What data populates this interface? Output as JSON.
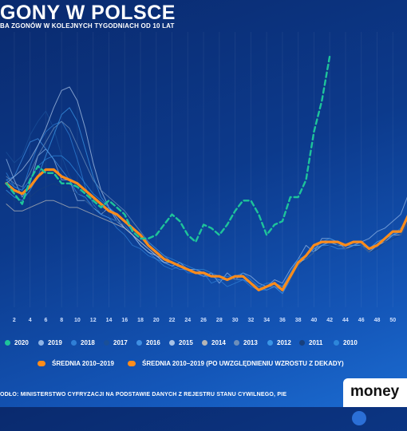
{
  "header": {
    "title": "GONY W POLSCE",
    "subtitle": "BA ZGONÓW W KOLEJNYCH TYGODNIACH OD 10 LAT"
  },
  "footer": {
    "source": "ODŁO: MINISTERSTWO CYFRYZACJI NA PODSTAWIE DANYCH Z REJESTRU STANU CYWILNEGO, PIE",
    "logo": "money"
  },
  "colors": {
    "y2020": "#1ec49a",
    "avg": "#ff8c1a",
    "thin": "#9fbde6"
  },
  "legend": {
    "years": [
      {
        "label": "2020",
        "color": "#1ec49a"
      },
      {
        "label": "2019",
        "color": "#8fb4e6"
      },
      {
        "label": "2018",
        "color": "#2f7fd6"
      },
      {
        "label": "2017",
        "color": "#1a4f98"
      },
      {
        "label": "2016",
        "color": "#3f8fe3"
      },
      {
        "label": "2015",
        "color": "#a7c2e6"
      },
      {
        "label": "2014",
        "color": "#b5b5b5"
      },
      {
        "label": "2013",
        "color": "#6d8fba"
      },
      {
        "label": "2012",
        "color": "#3a95e6"
      },
      {
        "label": "2011",
        "color": "#173f7d"
      },
      {
        "label": "2010",
        "color": "#2d86da"
      }
    ],
    "average_label": "ŚREDNIA 2010–2019",
    "adjusted_label": "ŚREDNIA 2010–2019 (PO UWZGLĘDNIENIU WZROSTU Z DEKADY)"
  },
  "chart_data": {
    "type": "line",
    "title": "GONY W POLSCE",
    "x": [
      1,
      2,
      3,
      4,
      5,
      6,
      7,
      8,
      9,
      10,
      11,
      12,
      13,
      14,
      15,
      16,
      17,
      18,
      19,
      20,
      21,
      22,
      23,
      24,
      25,
      26,
      27,
      28,
      29,
      30,
      31,
      32,
      33,
      34,
      35,
      36,
      37,
      38,
      39,
      40,
      41,
      42,
      43,
      44,
      45,
      46,
      47,
      48,
      49,
      50,
      51,
      52
    ],
    "x_tick_labels": [
      "2",
      "4",
      "6",
      "8",
      "10",
      "12",
      "14",
      "16",
      "18",
      "20",
      "22",
      "24",
      "26",
      "28",
      "30",
      "32",
      "34",
      "36",
      "38",
      "40",
      "42",
      "44",
      "46",
      "48",
      "50"
    ],
    "ylim": [
      6000,
      14000
    ],
    "series": [
      {
        "name": "2020",
        "style": "dashed",
        "values": [
          9600,
          9300,
          9000,
          9700,
          10100,
          9900,
          9900,
          9600,
          9600,
          9500,
          9300,
          9100,
          8900,
          9100,
          8900,
          8700,
          8200,
          8000,
          8000,
          8100,
          8400,
          8700,
          8500,
          8100,
          7900,
          8400,
          8300,
          8100,
          8400,
          8800,
          9100,
          9100,
          8700,
          8100,
          8400,
          8500,
          9200,
          9200,
          9700,
          11100,
          12000,
          13300,
          null,
          null,
          null,
          null,
          null,
          null,
          null,
          null,
          null,
          null
        ]
      },
      {
        "name": "ŚREDNIA 2010–2019",
        "style": "thick",
        "values": [
          9600,
          9400,
          9300,
          9500,
          9800,
          10000,
          10000,
          9800,
          9700,
          9600,
          9400,
          9200,
          9000,
          8800,
          8700,
          8500,
          8300,
          8100,
          7800,
          7600,
          7400,
          7300,
          7200,
          7100,
          7000,
          7000,
          6900,
          6900,
          6800,
          6900,
          6900,
          6700,
          6500,
          6600,
          6700,
          6500,
          6900,
          7300,
          7500,
          7800,
          7900,
          7900,
          7900,
          7800,
          7900,
          7900,
          7700,
          7800,
          8000,
          8200,
          8200,
          8700
        ]
      },
      {
        "name": "2019",
        "style": "thin",
        "values": [
          10300,
          9700,
          9200,
          9600,
          10400,
          10600,
          10300,
          9700,
          9700,
          9100,
          9100,
          8900,
          8700,
          8900,
          8500,
          8300,
          8100,
          7900,
          7700,
          7500,
          7300,
          7200,
          7300,
          7100,
          7000,
          6900,
          7000,
          6700,
          7000,
          6800,
          7000,
          6900,
          6700,
          6600,
          6800,
          6700,
          7100,
          7400,
          7800,
          7600,
          8000,
          8000,
          7900,
          7700,
          7800,
          7900,
          8000,
          8200,
          8300,
          8500,
          8700,
          9300
        ]
      },
      {
        "name": "2018",
        "style": "thin",
        "values": [
          9900,
          9500,
          9400,
          10100,
          10700,
          11100,
          11300,
          11400,
          11000,
          10300,
          9500,
          9000,
          8700,
          8600,
          8300,
          8100,
          7800,
          7700,
          7500,
          7400,
          7200,
          7100,
          7200,
          7000,
          7000,
          7000,
          6700,
          6800,
          6600,
          6700,
          6800,
          6600,
          6500,
          6500,
          6600,
          6400,
          6900,
          7300,
          7500,
          7700,
          7800,
          7900,
          7800,
          7700,
          7800,
          7800,
          7600,
          7800,
          8000,
          8100,
          8300,
          8600
        ]
      },
      {
        "name": "2017",
        "style": "thin",
        "values": [
          10500,
          10200,
          10400,
          11000,
          11400,
          11700,
          11200,
          10400,
          9800,
          9500,
          9100,
          9000,
          8900,
          8800,
          8700,
          8500,
          8300,
          8000,
          7700,
          7600,
          7500,
          7300,
          7200,
          7200,
          7000,
          7100,
          6900,
          6900,
          6700,
          6900,
          6900,
          6700,
          6500,
          6600,
          6600,
          6500,
          6800,
          7300,
          7400,
          7600,
          7700,
          7900,
          7800,
          7700,
          7700,
          7800,
          7600,
          7700,
          7800,
          8000,
          8100,
          8500
        ]
      },
      {
        "name": "2016",
        "style": "thin",
        "values": [
          9700,
          9800,
          10300,
          10800,
          10900,
          10600,
          10300,
          10000,
          9700,
          9300,
          9200,
          8900,
          8700,
          8600,
          8500,
          8400,
          8100,
          7800,
          7600,
          7400,
          7300,
          7200,
          7100,
          7100,
          7000,
          6900,
          6900,
          6800,
          6800,
          6800,
          6800,
          6700,
          6600,
          6500,
          6600,
          6400,
          6800,
          7200,
          7500,
          7700,
          7800,
          7800,
          7700,
          7700,
          7800,
          7800,
          7600,
          7800,
          7900,
          8100,
          8200,
          8600
        ]
      },
      {
        "name": "2015",
        "style": "thin",
        "values": [
          9600,
          9800,
          10000,
          10300,
          10700,
          11200,
          11800,
          12300,
          12400,
          12000,
          11200,
          10200,
          9400,
          8900,
          8600,
          8300,
          8100,
          7800,
          7600,
          7500,
          7300,
          7300,
          7200,
          7100,
          7100,
          7000,
          6900,
          6900,
          6800,
          6800,
          6900,
          6700,
          6600,
          6600,
          6700,
          6500,
          6900,
          7300,
          7400,
          7600,
          7800,
          7900,
          7800,
          7800,
          7900,
          7900,
          7700,
          7900,
          8000,
          8200,
          8200,
          8700
        ]
      },
      {
        "name": "2014",
        "style": "thin",
        "values": [
          9000,
          8800,
          8800,
          8900,
          9000,
          9100,
          9100,
          9000,
          8900,
          8900,
          8800,
          8700,
          8600,
          8500,
          8400,
          8300,
          8100,
          7900,
          7700,
          7500,
          7400,
          7300,
          7200,
          7100,
          7000,
          7000,
          6900,
          6900,
          6800,
          6900,
          6900,
          6700,
          6600,
          6600,
          6700,
          6600,
          6900,
          7300,
          7400,
          7600,
          7800,
          7900,
          7800,
          7700,
          7800,
          7800,
          7600,
          7800,
          7900,
          8100,
          8100,
          8500
        ]
      },
      {
        "name": "2013",
        "style": "thin",
        "values": [
          9800,
          9600,
          9500,
          9900,
          10400,
          10800,
          11200,
          11400,
          11200,
          10700,
          10200,
          9700,
          9400,
          9200,
          9000,
          8800,
          8500,
          8200,
          7900,
          7700,
          7500,
          7300,
          7200,
          7100,
          7000,
          7000,
          6900,
          6900,
          6800,
          6800,
          6900,
          6700,
          6500,
          6600,
          6600,
          6500,
          6800,
          7300,
          7500,
          7700,
          7800,
          7900,
          7800,
          7700,
          7800,
          7800,
          7600,
          7800,
          7900,
          8100,
          8200,
          8600
        ]
      },
      {
        "name": "2012",
        "style": "thin",
        "values": [
          9400,
          9200,
          9100,
          9400,
          9800,
          10400,
          11000,
          11600,
          11800,
          11400,
          10600,
          9800,
          9200,
          8900,
          8700,
          8500,
          8200,
          8000,
          7800,
          7600,
          7400,
          7300,
          7200,
          7100,
          7000,
          7000,
          6900,
          6900,
          6800,
          6900,
          6900,
          6700,
          6600,
          6600,
          6700,
          6500,
          6900,
          7300,
          7400,
          7600,
          7800,
          7900,
          7800,
          7800,
          7800,
          7800,
          7700,
          7800,
          8000,
          8100,
          8200,
          8600
        ]
      },
      {
        "name": "2011",
        "style": "thin",
        "values": [
          9300,
          9100,
          9000,
          9200,
          9400,
          9500,
          9600,
          9500,
          9400,
          9300,
          9100,
          8900,
          8800,
          8700,
          8500,
          8400,
          8200,
          8000,
          7800,
          7600,
          7400,
          7300,
          7200,
          7100,
          7000,
          7000,
          6900,
          6900,
          6800,
          6800,
          6900,
          6700,
          6600,
          6600,
          6700,
          6500,
          6800,
          7200,
          7400,
          7600,
          7700,
          7800,
          7800,
          7700,
          7700,
          7800,
          7600,
          7700,
          7900,
          8000,
          8100,
          8500
        ]
      },
      {
        "name": "2010",
        "style": "thin",
        "values": [
          9700,
          9500,
          9400,
          9700,
          10100,
          10300,
          10400,
          10400,
          10200,
          9900,
          9600,
          9300,
          9100,
          8900,
          8700,
          8500,
          8300,
          8100,
          7900,
          7700,
          7500,
          7400,
          7300,
          7200,
          7100,
          7100,
          7000,
          6900,
          6900,
          6900,
          7000,
          6800,
          6600,
          6700,
          6700,
          6600,
          7000,
          7400,
          7500,
          7700,
          7900,
          8000,
          7900,
          7800,
          7900,
          7900,
          7700,
          7900,
          8000,
          8200,
          8200,
          8700
        ]
      }
    ]
  }
}
